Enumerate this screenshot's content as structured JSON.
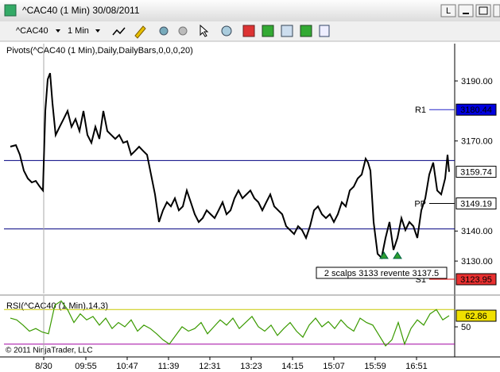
{
  "window": {
    "title": "^CAC40 (1 Min)  30/08/2011",
    "button": "L"
  },
  "toolbar": {
    "instrument": "^CAC40",
    "interval": "1 Min"
  },
  "copyright": "© 2011 NinjaTrader, LLC",
  "chart_data": [
    {
      "type": "line",
      "title": "Pivots(^CAC40 (1 Min),Daily,DailyBars,0,0,0,20)",
      "color": "#000000",
      "xlim": [
        -50,
        517
      ],
      "ylim": [
        3119.2,
        3201.9
      ],
      "yticks": [
        {
          "value": 3130,
          "label": "3130.00"
        },
        {
          "value": 3140,
          "label": "3140.00"
        },
        {
          "value": 3170,
          "label": "3170.00"
        },
        {
          "value": 3190,
          "label": "3190.00"
        }
      ],
      "x": [
        -42,
        -35,
        -30,
        -25,
        -20,
        -15,
        -10,
        -5,
        -1,
        2,
        5,
        8,
        11,
        15,
        20,
        25,
        30,
        35,
        40,
        45,
        50,
        55,
        60,
        65,
        70,
        75,
        80,
        85,
        90,
        95,
        100,
        105,
        110,
        115,
        120,
        125,
        130,
        135,
        140,
        145,
        150,
        155,
        160,
        165,
        170,
        175,
        180,
        185,
        190,
        195,
        200,
        205,
        210,
        215,
        220,
        225,
        230,
        235,
        240,
        245,
        250,
        255,
        260,
        265,
        270,
        275,
        280,
        285,
        290,
        295,
        300,
        305,
        310,
        315,
        320,
        325,
        330,
        335,
        340,
        345,
        350,
        355,
        360,
        365,
        370,
        375,
        380,
        385,
        390,
        395,
        400,
        405,
        408,
        411,
        415,
        420,
        425,
        430,
        435,
        440,
        445,
        450,
        455,
        460,
        465,
        470,
        475,
        480,
        485,
        490,
        495,
        500,
        505,
        508,
        510
      ],
      "values": [
        3168.1,
        3168.6,
        3165.4,
        3160.1,
        3157.5,
        3156.2,
        3156.7,
        3154.8,
        3153.5,
        3180.0,
        3190.5,
        3192.6,
        3182.6,
        3172.0,
        3174.7,
        3177.3,
        3180.0,
        3174.7,
        3177.3,
        3173.3,
        3180.0,
        3172.0,
        3169.4,
        3174.7,
        3170.7,
        3180.0,
        3173.3,
        3172.0,
        3170.7,
        3172.0,
        3169.4,
        3169.9,
        3165.4,
        3166.7,
        3168.1,
        3166.7,
        3165.4,
        3158.8,
        3152.2,
        3143.0,
        3146.9,
        3149.6,
        3148.2,
        3150.9,
        3146.9,
        3148.2,
        3153.5,
        3149.6,
        3145.6,
        3143.0,
        3144.3,
        3146.9,
        3145.6,
        3144.3,
        3146.9,
        3149.6,
        3145.6,
        3146.9,
        3150.9,
        3153.5,
        3150.9,
        3152.2,
        3153.5,
        3150.9,
        3149.6,
        3146.9,
        3149.6,
        3152.2,
        3148.2,
        3146.9,
        3145.6,
        3141.6,
        3140.3,
        3139.0,
        3141.6,
        3140.3,
        3137.7,
        3141.6,
        3146.9,
        3148.2,
        3145.6,
        3144.3,
        3145.6,
        3143.0,
        3145.6,
        3149.6,
        3148.2,
        3153.5,
        3154.8,
        3157.5,
        3158.8,
        3164.1,
        3162.8,
        3160.1,
        3143.0,
        3132.4,
        3131.1,
        3137.7,
        3143.0,
        3133.7,
        3137.7,
        3144.3,
        3140.3,
        3143.0,
        3141.6,
        3137.7,
        3146.9,
        3150.9,
        3158.8,
        3162.8,
        3153.5,
        3152.2,
        3157.5,
        3165.4,
        3159.74
      ],
      "hlines": [
        3163.5,
        3140.7
      ],
      "hline_color": "#000080",
      "levels": [
        {
          "label": "R1",
          "value": 3180.44,
          "color": "#2424c8",
          "box": "#0000e0"
        },
        {
          "label": "PP",
          "value": 3149.19,
          "color": "#000000",
          "box": "#ffffff"
        },
        {
          "label": "S1",
          "value": 3123.95,
          "color": "#e00000",
          "box": "#e83030"
        }
      ],
      "markers": {
        "x": [
          428,
          445
        ],
        "values": [
          3131.9,
          3131.9
        ],
        "color": "#2e9e2e"
      },
      "annotation": "2 scalps 3133 revente 3137.5"
    },
    {
      "type": "line",
      "title": "RSI(^CAC40 (1 Min),14,3)",
      "color": "#3a9a00",
      "xlim": [
        -50,
        517
      ],
      "ylim": [
        17,
        84
      ],
      "yticks": [
        50
      ],
      "xticks": [
        {
          "value": 0,
          "label": "8/30"
        },
        {
          "value": 53,
          "label": "09:55"
        },
        {
          "value": 105,
          "label": "10:47"
        },
        {
          "value": 157,
          "label": "11:39"
        },
        {
          "value": 209,
          "label": "12:31"
        },
        {
          "value": 261,
          "label": "13:23"
        },
        {
          "value": 313,
          "label": "14:15"
        },
        {
          "value": 365,
          "label": "15:07"
        },
        {
          "value": 417,
          "label": "15:59"
        },
        {
          "value": 469,
          "label": "16:51"
        }
      ],
      "x": [
        -42,
        -34,
        -26,
        -18,
        -10,
        -2,
        6,
        14,
        22,
        30,
        38,
        46,
        54,
        62,
        70,
        78,
        86,
        94,
        102,
        110,
        118,
        126,
        134,
        142,
        150,
        158,
        166,
        174,
        182,
        190,
        198,
        206,
        214,
        222,
        230,
        238,
        246,
        254,
        262,
        270,
        278,
        286,
        294,
        302,
        310,
        318,
        326,
        334,
        342,
        350,
        358,
        366,
        374,
        382,
        390,
        398,
        406,
        414,
        422,
        430,
        438,
        446,
        454,
        462,
        470,
        478,
        486,
        494,
        502,
        510
      ],
      "values": [
        60,
        58,
        52,
        45,
        48,
        44,
        42,
        75,
        80,
        70,
        55,
        65,
        58,
        62,
        52,
        60,
        48,
        55,
        50,
        58,
        45,
        52,
        48,
        42,
        35,
        30,
        40,
        50,
        45,
        48,
        55,
        42,
        50,
        58,
        52,
        60,
        48,
        55,
        62,
        50,
        45,
        52,
        40,
        48,
        55,
        45,
        38,
        52,
        60,
        50,
        56,
        48,
        58,
        50,
        45,
        60,
        55,
        52,
        40,
        28,
        35,
        55,
        30,
        48,
        58,
        52,
        65,
        70,
        58,
        62.86
      ],
      "levels": [
        {
          "value": 70,
          "color": "#c8c800"
        },
        {
          "value": 30,
          "color": "#a000a0"
        }
      ]
    }
  ]
}
